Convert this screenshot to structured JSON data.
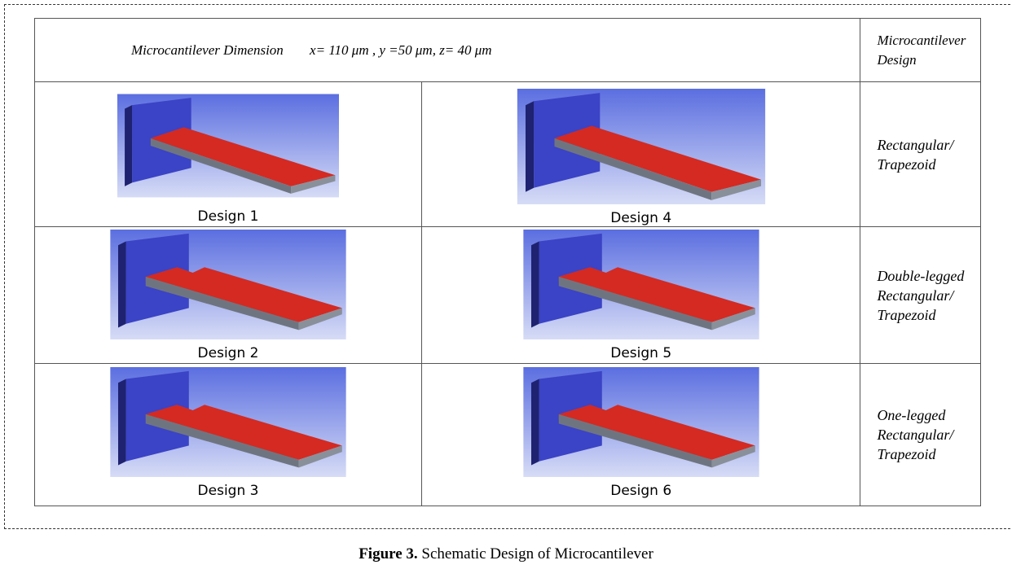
{
  "table": {
    "header": {
      "dimension_label": "Microcantilever Dimension",
      "dimension_value": "x= 110 μm , y =50 μm, z= 40 μm",
      "design_label": "Microcantilever\nDesign"
    },
    "rows": [
      {
        "designs": [
          "Design 1",
          "Design 4"
        ],
        "shape": "Rectangular/\nTrapezoid"
      },
      {
        "designs": [
          "Design 2",
          "Design 5"
        ],
        "shape": "Double-legged\nRectangular/\nTrapezoid"
      },
      {
        "designs": [
          "Design 3",
          "Design 6"
        ],
        "shape": "One-legged\nRectangular/\nTrapezoid"
      }
    ]
  },
  "caption": {
    "label": "Figure 3.",
    "text": "Schematic Design of Microcantilever"
  }
}
